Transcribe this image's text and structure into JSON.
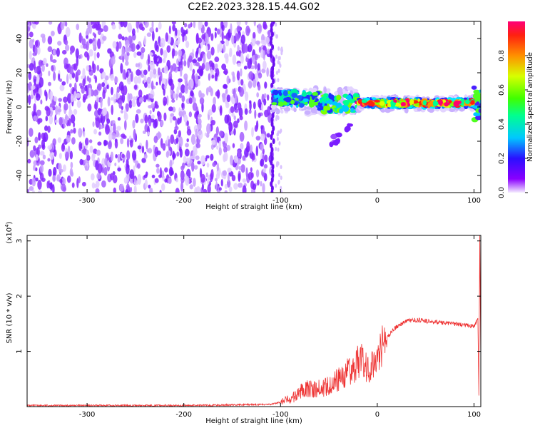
{
  "title": "C2E2.2023.328.15.44.G02",
  "chart_data": [
    {
      "type": "heatmap",
      "xlabel": "Height of straight line (km)",
      "ylabel": "Frequency (Hz)",
      "xlim": [
        -362,
        107
      ],
      "ylim": [
        -50,
        50
      ],
      "xticks": [
        -300,
        -200,
        -100,
        0,
        100
      ],
      "yticks": [
        -40,
        -20,
        0,
        20,
        40
      ],
      "colorbar": {
        "label": "Normalized spectral amplitude",
        "range": [
          0.0,
          1.0
        ],
        "ticks": [
          0.0,
          0.2,
          0.4,
          0.6,
          0.8
        ],
        "tick_labels": [
          "0.0",
          "0.2",
          "0.4",
          "0.6",
          "0.8"
        ]
      },
      "regions": [
        {
          "x": [
            -362,
            -108
          ],
          "freq": [
            -50,
            50
          ],
          "amplitude": "low noise 0.0-0.2"
        },
        {
          "x": [
            -108,
            -60
          ],
          "freq": [
            0,
            12
          ],
          "amplitude": "0.2-0.6"
        },
        {
          "x": [
            -60,
            -20
          ],
          "freq": [
            -5,
            8
          ],
          "amplitude": "0.2-0.6"
        },
        {
          "x": [
            -20,
            107
          ],
          "freq": [
            0,
            4
          ],
          "amplitude": "0.6-1.0 (peak near 2 Hz)"
        }
      ]
    },
    {
      "type": "line",
      "xlabel": "Height of straight line (km)",
      "ylabel": "SNR (10 * v/v)",
      "yscale_label": "(x10",
      "yscale_exp": "4",
      "xlim": [
        -362,
        107
      ],
      "ylim": [
        0,
        3.1
      ],
      "xticks": [
        -300,
        -200,
        -100,
        0,
        100
      ],
      "yticks": [
        1,
        2,
        3
      ],
      "color": "#ee3333",
      "series": [
        {
          "x": [
            -362,
            -300,
            -200,
            -150,
            -110,
            -95,
            -85,
            -75,
            -65,
            -55,
            -45,
            -35,
            -25,
            -18,
            -10,
            -5,
            0,
            10,
            20,
            30,
            40,
            50,
            60,
            70,
            80,
            90,
            100,
            104,
            105,
            106,
            107
          ],
          "y": [
            0.02,
            0.02,
            0.02,
            0.03,
            0.04,
            0.1,
            0.18,
            0.35,
            0.3,
            0.35,
            0.45,
            0.55,
            0.7,
            0.85,
            0.7,
            0.75,
            1.0,
            1.25,
            1.45,
            1.55,
            1.57,
            1.55,
            1.53,
            1.52,
            1.5,
            1.48,
            1.45,
            1.6,
            0.2,
            3.1,
            0.8
          ]
        }
      ]
    }
  ]
}
